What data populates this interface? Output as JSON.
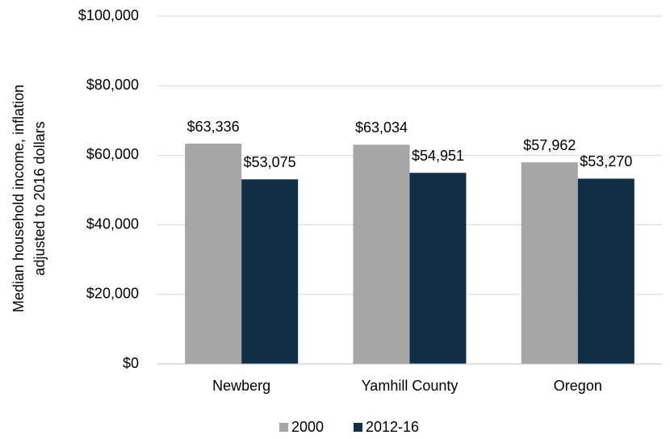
{
  "chart_data": {
    "type": "bar",
    "ylabel": [
      "Median household income, inflation",
      "adjusted to 2016 dollars"
    ],
    "categories": [
      "Newberg",
      "Yamhill County",
      "Oregon"
    ],
    "series": [
      {
        "name": "2000",
        "color": "#a6a6a6",
        "values": [
          63336,
          63034,
          57962
        ],
        "value_labels": [
          "$63,336",
          "$63,034",
          "$57,962"
        ]
      },
      {
        "name": "2012-16",
        "color": "#10304a",
        "values": [
          53075,
          54951,
          53270
        ],
        "value_labels": [
          "$53,075",
          "$54,951",
          "$53,270"
        ]
      }
    ],
    "ylim": [
      0,
      100000
    ],
    "yticks": [
      {
        "value": 0,
        "label": "$0"
      },
      {
        "value": 20000,
        "label": "$20,000"
      },
      {
        "value": 40000,
        "label": "$40,000"
      },
      {
        "value": 60000,
        "label": "$60,000"
      },
      {
        "value": 80000,
        "label": "$80,000"
      },
      {
        "value": 100000,
        "label": "$100,000"
      }
    ],
    "grid": true,
    "legend": "bottom"
  }
}
